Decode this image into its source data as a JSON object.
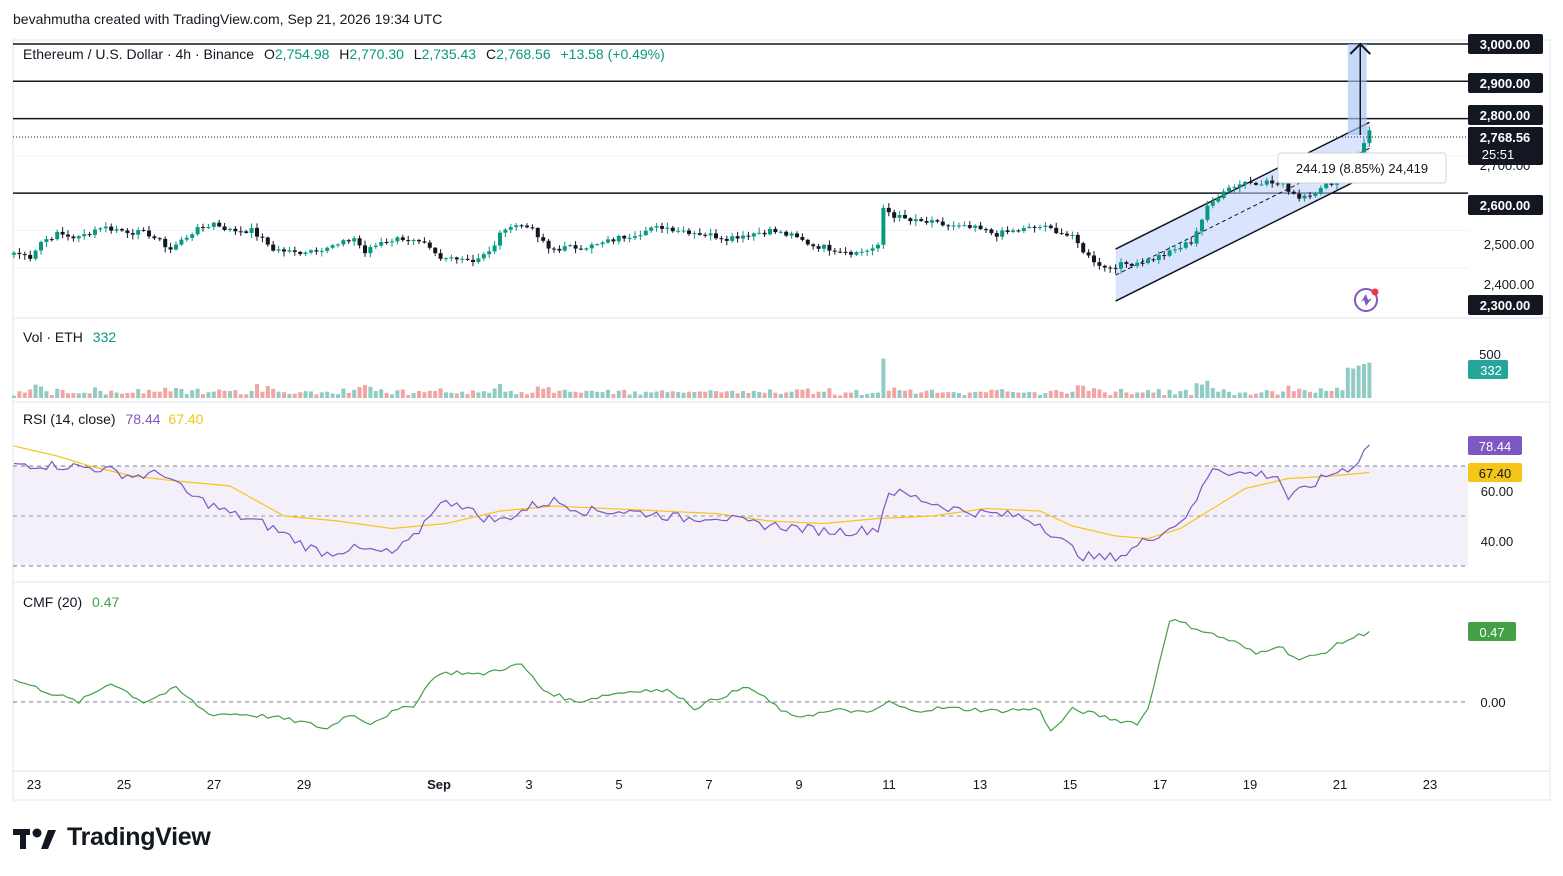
{
  "header": {
    "attribution": "bevahmutha created with TradingView.com, Sep 21, 2026 19:34 UTC"
  },
  "legend": {
    "symbol": "Ethereum / U.S. Dollar · 4h · Binance",
    "o_label": "O",
    "o": "2,754.98",
    "h_label": "H",
    "h": "2,770.30",
    "l_label": "L",
    "l": "2,735.43",
    "c_label": "C",
    "c": "2,768.56",
    "change": "+13.58 (+0.49%)"
  },
  "colors": {
    "up": "#089981",
    "down": "#131722",
    "line": "#131722",
    "vol_up": "#8fcdc4",
    "vol_down": "#f2a5a5",
    "rsi": "#7e57c2",
    "rsi_ma": "#f5c518",
    "cmf": "#43a047",
    "channel": "#bbd0fb",
    "measure": "#a9c4f5"
  },
  "price_axis": {
    "labels": [
      "3,000.00",
      "2,900.00",
      "2,800.00",
      "2,600.00",
      "2,500.00",
      "2,400.00",
      "2,300.00"
    ],
    "current_price": "2,768.56",
    "countdown": "25:51",
    "hidden_label": "2,700.00"
  },
  "measure_box": {
    "text": "244.19 (8.85%) 24,419"
  },
  "volume_pane": {
    "label": "Vol · ETH",
    "value": "332",
    "axis_label": "500"
  },
  "rsi_pane": {
    "label": "RSI (14, close)",
    "value": "78.44",
    "ma_value": "67.40",
    "axis_labels": [
      "60.00",
      "40.00"
    ]
  },
  "cmf_pane": {
    "label": "CMF (20)",
    "value": "0.47",
    "axis_label": "0.00"
  },
  "time_axis": [
    "23",
    "25",
    "27",
    "29",
    "Sep",
    "3",
    "5",
    "7",
    "9",
    "11",
    "13",
    "15",
    "17",
    "19",
    "21",
    "23"
  ],
  "footer": {
    "brand": "TradingView"
  },
  "chart_data": [
    {
      "type": "candlestick",
      "title": "Ethereum / U.S. Dollar · 4h · Binance",
      "ylim": [
        2280,
        3000
      ],
      "horizontal_levels": [
        3000,
        2900,
        2800,
        2600
      ],
      "x_ticks": [
        "23",
        "25",
        "27",
        "29",
        "Sep",
        "3",
        "5",
        "7",
        "9",
        "11",
        "13",
        "15",
        "17",
        "19",
        "21",
        "23"
      ],
      "close_trajectory": [
        [
          0,
          2440
        ],
        [
          3,
          2430
        ],
        [
          5,
          2470
        ],
        [
          8,
          2490
        ],
        [
          12,
          2480
        ],
        [
          16,
          2510
        ],
        [
          20,
          2500
        ],
        [
          25,
          2490
        ],
        [
          29,
          2450
        ],
        [
          33,
          2495
        ],
        [
          37,
          2520
        ],
        [
          40,
          2500
        ],
        [
          44,
          2500
        ],
        [
          48,
          2450
        ],
        [
          52,
          2440
        ],
        [
          56,
          2450
        ],
        [
          60,
          2460
        ],
        [
          63,
          2480
        ],
        [
          65,
          2440
        ],
        [
          68,
          2470
        ],
        [
          72,
          2480
        ],
        [
          76,
          2460
        ],
        [
          79,
          2420
        ],
        [
          82,
          2430
        ],
        [
          85,
          2420
        ],
        [
          88,
          2440
        ],
        [
          91,
          2510
        ],
        [
          95,
          2515
        ],
        [
          99,
          2450
        ],
        [
          104,
          2455
        ],
        [
          108,
          2460
        ],
        [
          112,
          2480
        ],
        [
          116,
          2495
        ],
        [
          120,
          2510
        ],
        [
          124,
          2500
        ],
        [
          128,
          2490
        ],
        [
          132,
          2480
        ],
        [
          136,
          2490
        ],
        [
          140,
          2500
        ],
        [
          144,
          2485
        ],
        [
          148,
          2460
        ],
        [
          152,
          2450
        ],
        [
          156,
          2440
        ],
        [
          160,
          2455
        ],
        [
          161,
          2560
        ],
        [
          163,
          2540
        ],
        [
          166,
          2525
        ],
        [
          170,
          2520
        ],
        [
          174,
          2510
        ],
        [
          178,
          2505
        ],
        [
          182,
          2490
        ],
        [
          186,
          2500
        ],
        [
          190,
          2510
        ],
        [
          193,
          2500
        ],
        [
          196,
          2480
        ],
        [
          199,
          2430
        ],
        [
          202,
          2400
        ],
        [
          206,
          2410
        ],
        [
          210,
          2420
        ],
        [
          214,
          2440
        ],
        [
          218,
          2470
        ],
        [
          221,
          2560
        ],
        [
          224,
          2610
        ],
        [
          228,
          2630
        ],
        [
          232,
          2630
        ],
        [
          235,
          2620
        ],
        [
          238,
          2590
        ],
        [
          242,
          2610
        ],
        [
          246,
          2650
        ],
        [
          249,
          2700
        ],
        [
          251,
          2768.56
        ]
      ]
    },
    {
      "type": "bar",
      "title": "Vol · ETH",
      "latest": 332,
      "axis_tick": 500
    },
    {
      "type": "line",
      "title": "RSI (14, close)",
      "ylim": [
        30,
        90
      ],
      "bands": [
        70,
        50,
        30
      ],
      "axis_ticks": [
        60,
        40
      ],
      "series": [
        {
          "name": "RSI",
          "latest": 78.44,
          "points": [
            [
              0,
              71
            ],
            [
              10,
              70
            ],
            [
              16,
              69
            ],
            [
              22,
              66
            ],
            [
              28,
              67
            ],
            [
              32,
              59
            ],
            [
              40,
              51
            ],
            [
              46,
              47
            ],
            [
              50,
              43
            ],
            [
              54,
              38
            ],
            [
              58,
              35
            ],
            [
              62,
              37
            ],
            [
              66,
              36
            ],
            [
              70,
              35
            ],
            [
              74,
              41
            ],
            [
              78,
              54
            ],
            [
              82,
              56
            ],
            [
              86,
              50
            ],
            [
              90,
              48
            ],
            [
              96,
              54
            ],
            [
              100,
              56
            ],
            [
              106,
              52
            ],
            [
              112,
              52
            ],
            [
              118,
              51
            ],
            [
              124,
              49
            ],
            [
              130,
              50
            ],
            [
              136,
              47
            ],
            [
              142,
              46
            ],
            [
              146,
              45
            ],
            [
              150,
              44
            ],
            [
              156,
              44
            ],
            [
              160,
              45
            ],
            [
              162,
              60
            ],
            [
              166,
              58
            ],
            [
              172,
              54
            ],
            [
              176,
              52
            ],
            [
              180,
              51
            ],
            [
              186,
              50
            ],
            [
              190,
              47
            ],
            [
              194,
              40
            ],
            [
              198,
              34
            ],
            [
              202,
              33
            ],
            [
              206,
              35
            ],
            [
              210,
              41
            ],
            [
              214,
              45
            ],
            [
              218,
              52
            ],
            [
              222,
              70
            ],
            [
              226,
              67
            ],
            [
              230,
              67
            ],
            [
              234,
              66
            ],
            [
              236,
              57
            ],
            [
              240,
              62
            ],
            [
              244,
              67
            ],
            [
              248,
              70
            ],
            [
              251,
              78.44
            ]
          ]
        },
        {
          "name": "RSI-based MA",
          "latest": 67.4,
          "points": [
            [
              0,
              78
            ],
            [
              8,
              74
            ],
            [
              14,
              70
            ],
            [
              22,
              66
            ],
            [
              30,
              64
            ],
            [
              40,
              62
            ],
            [
              50,
              50
            ],
            [
              60,
              48
            ],
            [
              70,
              45
            ],
            [
              80,
              47
            ],
            [
              90,
              52
            ],
            [
              100,
              54
            ],
            [
              110,
              53
            ],
            [
              120,
              52
            ],
            [
              130,
              51
            ],
            [
              140,
              48
            ],
            [
              150,
              47
            ],
            [
              160,
              49
            ],
            [
              170,
              50
            ],
            [
              180,
              53
            ],
            [
              190,
              52
            ],
            [
              196,
              46
            ],
            [
              204,
              42
            ],
            [
              210,
              41
            ],
            [
              216,
              45
            ],
            [
              222,
              53
            ],
            [
              228,
              61
            ],
            [
              236,
              65
            ],
            [
              244,
              66
            ],
            [
              251,
              67.4
            ]
          ]
        }
      ]
    },
    {
      "type": "line",
      "title": "CMF (20)",
      "ylim": [
        -0.22,
        0.6
      ],
      "zero_line": 0.0,
      "axis_ticks": [
        0.0
      ],
      "series": [
        {
          "name": "CMF",
          "latest": 0.47,
          "points": [
            [
              0,
              0.15
            ],
            [
              6,
              0.07
            ],
            [
              12,
              0.0
            ],
            [
              18,
              0.13
            ],
            [
              24,
              0.0
            ],
            [
              30,
              0.09
            ],
            [
              36,
              -0.08
            ],
            [
              42,
              -0.08
            ],
            [
              48,
              -0.1
            ],
            [
              54,
              -0.14
            ],
            [
              58,
              -0.18
            ],
            [
              62,
              -0.08
            ],
            [
              66,
              -0.14
            ],
            [
              70,
              -0.07
            ],
            [
              74,
              -0.02
            ],
            [
              78,
              0.18
            ],
            [
              82,
              0.2
            ],
            [
              86,
              0.18
            ],
            [
              90,
              0.22
            ],
            [
              94,
              0.25
            ],
            [
              98,
              0.08
            ],
            [
              104,
              0.0
            ],
            [
              110,
              0.05
            ],
            [
              116,
              0.08
            ],
            [
              122,
              0.07
            ],
            [
              126,
              -0.04
            ],
            [
              132,
              0.05
            ],
            [
              136,
              0.1
            ],
            [
              140,
              0.0
            ],
            [
              144,
              -0.1
            ],
            [
              148,
              -0.08
            ],
            [
              154,
              -0.05
            ],
            [
              158,
              -0.08
            ],
            [
              162,
              0.0
            ],
            [
              166,
              -0.06
            ],
            [
              172,
              -0.04
            ],
            [
              178,
              -0.05
            ],
            [
              182,
              -0.06
            ],
            [
              186,
              -0.05
            ],
            [
              190,
              -0.05
            ],
            [
              192,
              -0.2
            ],
            [
              196,
              -0.05
            ],
            [
              200,
              -0.08
            ],
            [
              204,
              -0.12
            ],
            [
              208,
              -0.14
            ],
            [
              210,
              -0.05
            ],
            [
              214,
              0.55
            ],
            [
              216,
              0.53
            ],
            [
              222,
              0.45
            ],
            [
              226,
              0.4
            ],
            [
              230,
              0.32
            ],
            [
              234,
              0.38
            ],
            [
              238,
              0.28
            ],
            [
              242,
              0.32
            ],
            [
              246,
              0.4
            ],
            [
              251,
              0.47
            ]
          ]
        }
      ]
    }
  ]
}
